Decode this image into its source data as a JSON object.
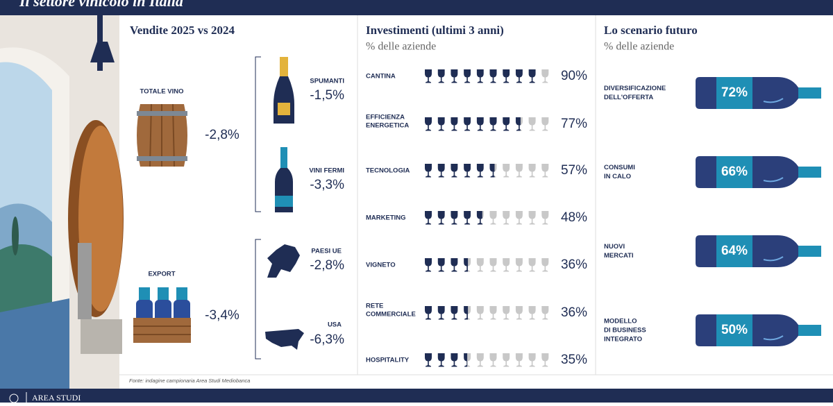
{
  "header": {
    "title": "Il settore vinicolo in Italia"
  },
  "sales": {
    "title": "Vendite 2025 vs 2024",
    "total": {
      "label": "TOTALE VINO",
      "value": "-2,8%"
    },
    "spumanti": {
      "label": "SPUMANTI",
      "value": "-1,5%"
    },
    "vini_fermi": {
      "label": "VINI FERMI",
      "value": "-3,3%"
    },
    "export": {
      "label": "EXPORT",
      "value": "-3,4%"
    },
    "paesi_ue": {
      "label": "PAESI UE",
      "value": "-2,8%"
    },
    "usa": {
      "label": "USA",
      "value": "-6,3%"
    }
  },
  "investments": {
    "title": "Investimenti (ultimi 3 anni)",
    "subtitle": "% delle aziende",
    "items": [
      {
        "label": [
          "CANTINA"
        ],
        "value": 90,
        "value_label": "90%"
      },
      {
        "label": [
          "EFFICIENZA",
          "ENERGETICA"
        ],
        "value": 77,
        "value_label": "77%"
      },
      {
        "label": [
          "TECNOLOGIA"
        ],
        "value": 57,
        "value_label": "57%"
      },
      {
        "label": [
          "MARKETING"
        ],
        "value": 48,
        "value_label": "48%"
      },
      {
        "label": [
          "VIGNETO"
        ],
        "value": 36,
        "value_label": "36%"
      },
      {
        "label": [
          "RETE",
          "COMMERCIALE"
        ],
        "value": 36,
        "value_label": "36%"
      },
      {
        "label": [
          "HOSPITALITY"
        ],
        "value": 35,
        "value_label": "35%"
      }
    ]
  },
  "scenario": {
    "title": "Lo scenario futuro",
    "subtitle": "% delle aziende",
    "items": [
      {
        "label": [
          "DIVERSIFICAZIONE",
          "DELL'OFFERTA"
        ],
        "value": "72%"
      },
      {
        "label": [
          "CONSUMI",
          "IN CALO"
        ],
        "value": "66%"
      },
      {
        "label": [
          "NUOVI",
          "MERCATI"
        ],
        "value": "64%"
      },
      {
        "label": [
          "MODELLO",
          "DI BUSINESS",
          "INTEGRATO"
        ],
        "value": "50%"
      }
    ]
  },
  "footer": {
    "source": "Fonte: indagine campionaria Area Studi Mediobanca",
    "brand": "AREA STUDI"
  }
}
